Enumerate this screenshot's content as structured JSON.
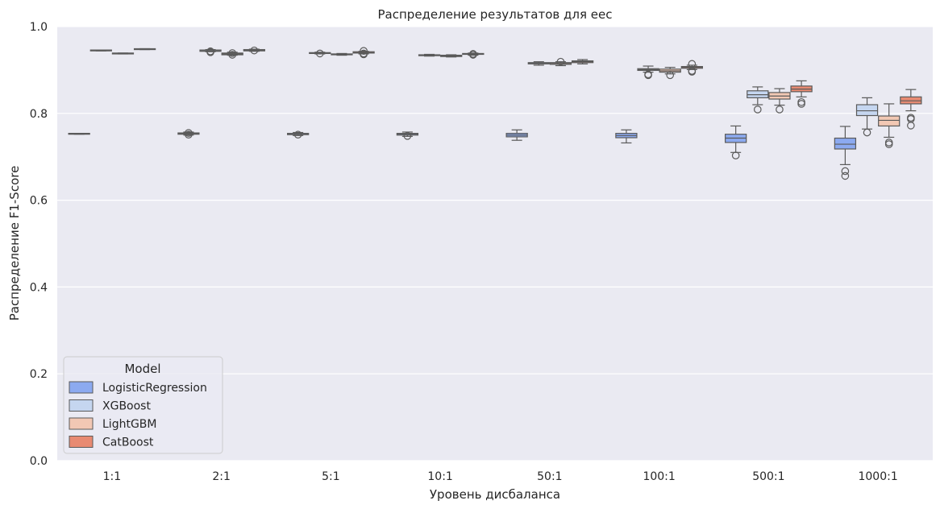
{
  "chart_data": {
    "type": "box",
    "title": "Распределение результатов для eec",
    "xlabel": "Уровень дисбаланса",
    "ylabel": "Распределение F1-Score",
    "categories": [
      "1:1",
      "2:1",
      "5:1",
      "10:1",
      "50:1",
      "100:1",
      "500:1",
      "1000:1"
    ],
    "ylim": [
      0,
      1.0
    ],
    "yticks": [
      0.0,
      0.2,
      0.4,
      0.6,
      0.8,
      1.0
    ],
    "ytick_labels": [
      "0.0",
      "0.2",
      "0.4",
      "0.6",
      "0.8",
      "1.0"
    ],
    "grid": true,
    "legend": {
      "title": "Model",
      "position": "lower-left"
    },
    "series": [
      {
        "name": "LogisticRegression",
        "color": "#8caaf0",
        "boxes": [
          {
            "q1": 0.752,
            "median": 0.753,
            "q3": 0.754,
            "whisker_low": 0.752,
            "whisker_high": 0.754,
            "outliers": []
          },
          {
            "q1": 0.752,
            "median": 0.753,
            "q3": 0.755,
            "whisker_low": 0.75,
            "whisker_high": 0.757,
            "outliers": [
              0.751,
              0.755
            ]
          },
          {
            "q1": 0.751,
            "median": 0.752,
            "q3": 0.754,
            "whisker_low": 0.749,
            "whisker_high": 0.756,
            "outliers": [
              0.751
            ]
          },
          {
            "q1": 0.75,
            "median": 0.752,
            "q3": 0.754,
            "whisker_low": 0.747,
            "whisker_high": 0.757,
            "outliers": [
              0.748
            ]
          },
          {
            "q1": 0.746,
            "median": 0.75,
            "q3": 0.754,
            "whisker_low": 0.738,
            "whisker_high": 0.762,
            "outliers": []
          },
          {
            "q1": 0.744,
            "median": 0.749,
            "q3": 0.754,
            "whisker_low": 0.732,
            "whisker_high": 0.762,
            "outliers": []
          },
          {
            "q1": 0.733,
            "median": 0.743,
            "q3": 0.752,
            "whisker_low": 0.71,
            "whisker_high": 0.771,
            "outliers": [
              0.703
            ]
          },
          {
            "q1": 0.718,
            "median": 0.729,
            "q3": 0.743,
            "whisker_low": 0.682,
            "whisker_high": 0.77,
            "outliers": [
              0.667,
              0.656
            ]
          }
        ]
      },
      {
        "name": "XGBoost",
        "color": "#c5d6f0",
        "boxes": [
          {
            "q1": 0.944,
            "median": 0.945,
            "q3": 0.946,
            "whisker_low": 0.944,
            "whisker_high": 0.946,
            "outliers": []
          },
          {
            "q1": 0.943,
            "median": 0.944,
            "q3": 0.946,
            "whisker_low": 0.942,
            "whisker_high": 0.947,
            "outliers": [
              0.941,
              0.943
            ]
          },
          {
            "q1": 0.938,
            "median": 0.939,
            "q3": 0.94,
            "whisker_low": 0.937,
            "whisker_high": 0.941,
            "outliers": [
              0.938
            ]
          },
          {
            "q1": 0.933,
            "median": 0.934,
            "q3": 0.935,
            "whisker_low": 0.932,
            "whisker_high": 0.936,
            "outliers": []
          },
          {
            "q1": 0.914,
            "median": 0.916,
            "q3": 0.917,
            "whisker_low": 0.911,
            "whisker_high": 0.919,
            "outliers": []
          },
          {
            "q1": 0.899,
            "median": 0.901,
            "q3": 0.903,
            "whisker_low": 0.895,
            "whisker_high": 0.909,
            "outliers": [
              0.89,
              0.888
            ]
          },
          {
            "q1": 0.836,
            "median": 0.843,
            "q3": 0.852,
            "whisker_low": 0.82,
            "whisker_high": 0.861,
            "outliers": [
              0.809
            ]
          },
          {
            "q1": 0.795,
            "median": 0.806,
            "q3": 0.82,
            "whisker_low": 0.764,
            "whisker_high": 0.836,
            "outliers": [
              0.756
            ]
          }
        ]
      },
      {
        "name": "LightGBM",
        "color": "#f2c8b4",
        "boxes": [
          {
            "q1": 0.937,
            "median": 0.938,
            "q3": 0.939,
            "whisker_low": 0.937,
            "whisker_high": 0.939,
            "outliers": []
          },
          {
            "q1": 0.935,
            "median": 0.937,
            "q3": 0.939,
            "whisker_low": 0.934,
            "whisker_high": 0.941,
            "outliers": [
              0.935,
              0.939
            ]
          },
          {
            "q1": 0.935,
            "median": 0.936,
            "q3": 0.937,
            "whisker_low": 0.934,
            "whisker_high": 0.938,
            "outliers": []
          },
          {
            "q1": 0.931,
            "median": 0.932,
            "q3": 0.934,
            "whisker_low": 0.93,
            "whisker_high": 0.935,
            "outliers": []
          },
          {
            "q1": 0.913,
            "median": 0.915,
            "q3": 0.917,
            "whisker_low": 0.91,
            "whisker_high": 0.919,
            "outliers": [
              0.919
            ]
          },
          {
            "q1": 0.895,
            "median": 0.898,
            "q3": 0.902,
            "whisker_low": 0.891,
            "whisker_high": 0.906,
            "outliers": [
              0.888
            ]
          },
          {
            "q1": 0.833,
            "median": 0.84,
            "q3": 0.848,
            "whisker_low": 0.819,
            "whisker_high": 0.857,
            "outliers": [
              0.809
            ]
          },
          {
            "q1": 0.771,
            "median": 0.784,
            "q3": 0.794,
            "whisker_low": 0.745,
            "whisker_high": 0.822,
            "outliers": [
              0.733,
              0.729
            ]
          }
        ]
      },
      {
        "name": "CatBoost",
        "color": "#e88a72",
        "boxes": [
          {
            "q1": 0.947,
            "median": 0.948,
            "q3": 0.949,
            "whisker_low": 0.947,
            "whisker_high": 0.949,
            "outliers": []
          },
          {
            "q1": 0.944,
            "median": 0.945,
            "q3": 0.947,
            "whisker_low": 0.943,
            "whisker_high": 0.948,
            "outliers": [
              0.945
            ]
          },
          {
            "q1": 0.939,
            "median": 0.94,
            "q3": 0.942,
            "whisker_low": 0.937,
            "whisker_high": 0.943,
            "outliers": [
              0.936,
              0.938,
              0.944
            ]
          },
          {
            "q1": 0.936,
            "median": 0.937,
            "q3": 0.938,
            "whisker_low": 0.934,
            "whisker_high": 0.939,
            "outliers": [
              0.935,
              0.937
            ]
          },
          {
            "q1": 0.917,
            "median": 0.919,
            "q3": 0.921,
            "whisker_low": 0.914,
            "whisker_high": 0.924,
            "outliers": []
          },
          {
            "q1": 0.904,
            "median": 0.906,
            "q3": 0.908,
            "whisker_low": 0.901,
            "whisker_high": 0.911,
            "outliers": [
              0.896,
              0.898,
              0.914
            ]
          },
          {
            "q1": 0.85,
            "median": 0.856,
            "q3": 0.863,
            "whisker_low": 0.838,
            "whisker_high": 0.875,
            "outliers": [
              0.826,
              0.822
            ]
          },
          {
            "q1": 0.822,
            "median": 0.829,
            "q3": 0.838,
            "whisker_low": 0.806,
            "whisker_high": 0.855,
            "outliers": [
              0.79,
              0.787,
              0.772
            ]
          }
        ]
      }
    ]
  }
}
